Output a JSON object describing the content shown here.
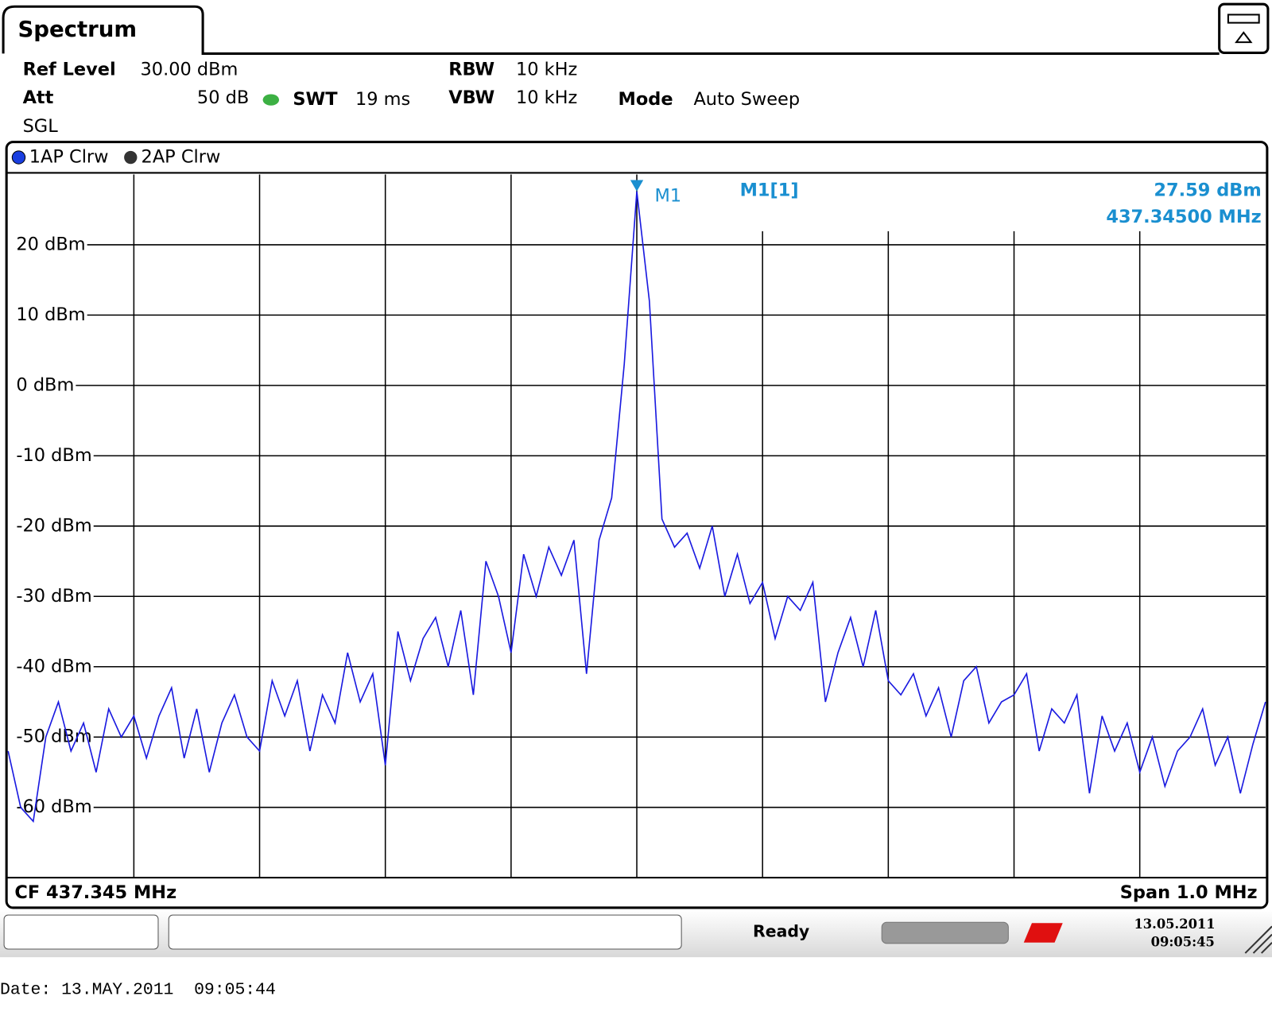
{
  "header": {
    "tab": "Spectrum",
    "settings": {
      "ref_level_label": "Ref Level",
      "ref_level": "30.00 dBm",
      "att_label": "Att",
      "att": "50 dB",
      "swt_label": "SWT",
      "swt": "19 ms",
      "rbw_label": "RBW",
      "rbw": "10 kHz",
      "vbw_label": "VBW",
      "vbw": "10 kHz",
      "mode_label": "Mode",
      "mode": "Auto Sweep",
      "sweep": "SGL"
    },
    "inactive_trace": "2AP Clrw"
  },
  "chart_data": {
    "type": "line",
    "center_label": "CF 437.345 MHz",
    "span_label": "Span 1.0 MHz",
    "xlim": [
      436.845,
      437.845
    ],
    "xticks": [
      436.945,
      437.045,
      437.145,
      437.245,
      437.345,
      437.445,
      437.545,
      437.645,
      437.745
    ],
    "ylim": [
      -70,
      30
    ],
    "yticks": [
      {
        "value": 20,
        "label": "20 dBm"
      },
      {
        "value": 10,
        "label": "10 dBm"
      },
      {
        "value": 0,
        "label": "0 dBm"
      },
      {
        "value": -10,
        "label": "-10 dBm"
      },
      {
        "value": -20,
        "label": "-20 dBm"
      },
      {
        "value": -30,
        "label": "-30 dBm"
      },
      {
        "value": -40,
        "label": "-40 dBm"
      },
      {
        "value": -50,
        "label": "-50 dBm"
      },
      {
        "value": -60,
        "label": "-60 dBm"
      }
    ],
    "grid": true,
    "x": [
      436.845,
      436.855,
      436.865,
      436.875,
      436.885,
      436.895,
      436.905,
      436.915,
      436.925,
      436.935,
      436.945,
      436.955,
      436.965,
      436.975,
      436.985,
      436.995,
      437.005,
      437.015,
      437.025,
      437.035,
      437.045,
      437.055,
      437.065,
      437.075,
      437.085,
      437.095,
      437.105,
      437.115,
      437.125,
      437.135,
      437.145,
      437.155,
      437.165,
      437.175,
      437.185,
      437.195,
      437.205,
      437.215,
      437.225,
      437.235,
      437.245,
      437.255,
      437.265,
      437.275,
      437.285,
      437.295,
      437.305,
      437.315,
      437.325,
      437.335,
      437.345,
      437.355,
      437.365,
      437.375,
      437.385,
      437.395,
      437.405,
      437.415,
      437.425,
      437.435,
      437.445,
      437.455,
      437.465,
      437.475,
      437.485,
      437.495,
      437.505,
      437.515,
      437.525,
      437.535,
      437.545,
      437.555,
      437.565,
      437.575,
      437.585,
      437.595,
      437.605,
      437.615,
      437.625,
      437.635,
      437.645,
      437.655,
      437.665,
      437.675,
      437.685,
      437.695,
      437.705,
      437.715,
      437.725,
      437.735,
      437.745,
      437.755,
      437.765,
      437.775,
      437.785,
      437.795,
      437.805,
      437.815,
      437.825,
      437.835,
      437.845
    ],
    "series": [
      {
        "name": "1AP Clrw",
        "color": "#1a1ae0",
        "values": [
          -52,
          -60,
          -62,
          -50,
          -45,
          -52,
          -48,
          -55,
          -46,
          -50,
          -47,
          -53,
          -47,
          -43,
          -53,
          -46,
          -55,
          -48,
          -44,
          -50,
          -52,
          -42,
          -47,
          -42,
          -52,
          -44,
          -48,
          -38,
          -45,
          -41,
          -54,
          -35,
          -42,
          -36,
          -33,
          -40,
          -32,
          -44,
          -25,
          -30,
          -38,
          -24,
          -30,
          -23,
          -27,
          -22,
          -41,
          -22,
          -16,
          3,
          27.59,
          12,
          -19,
          -23,
          -21,
          -26,
          -20,
          -30,
          -24,
          -31,
          -28,
          -36,
          -30,
          -32,
          -28,
          -45,
          -38,
          -33,
          -40,
          -32,
          -42,
          -44,
          -41,
          -47,
          -43,
          -50,
          -42,
          -40,
          -48,
          -45,
          -44,
          -41,
          -52,
          -46,
          -48,
          -44,
          -58,
          -47,
          -52,
          -48,
          -55,
          -50,
          -57,
          -52,
          -50,
          -46,
          -54,
          -50,
          -58,
          -51,
          -45
        ]
      }
    ],
    "marker": {
      "name": "M1",
      "readout": "M1[1]",
      "x": 437.345,
      "y": 27.59,
      "y_label": "27.59 dBm",
      "x_label": "437.34500 MHz"
    }
  },
  "status": {
    "state": "Ready",
    "date": "13.05.2011",
    "time": "09:05:45"
  },
  "footer": "Date: 13.MAY.2011  09:05:44"
}
